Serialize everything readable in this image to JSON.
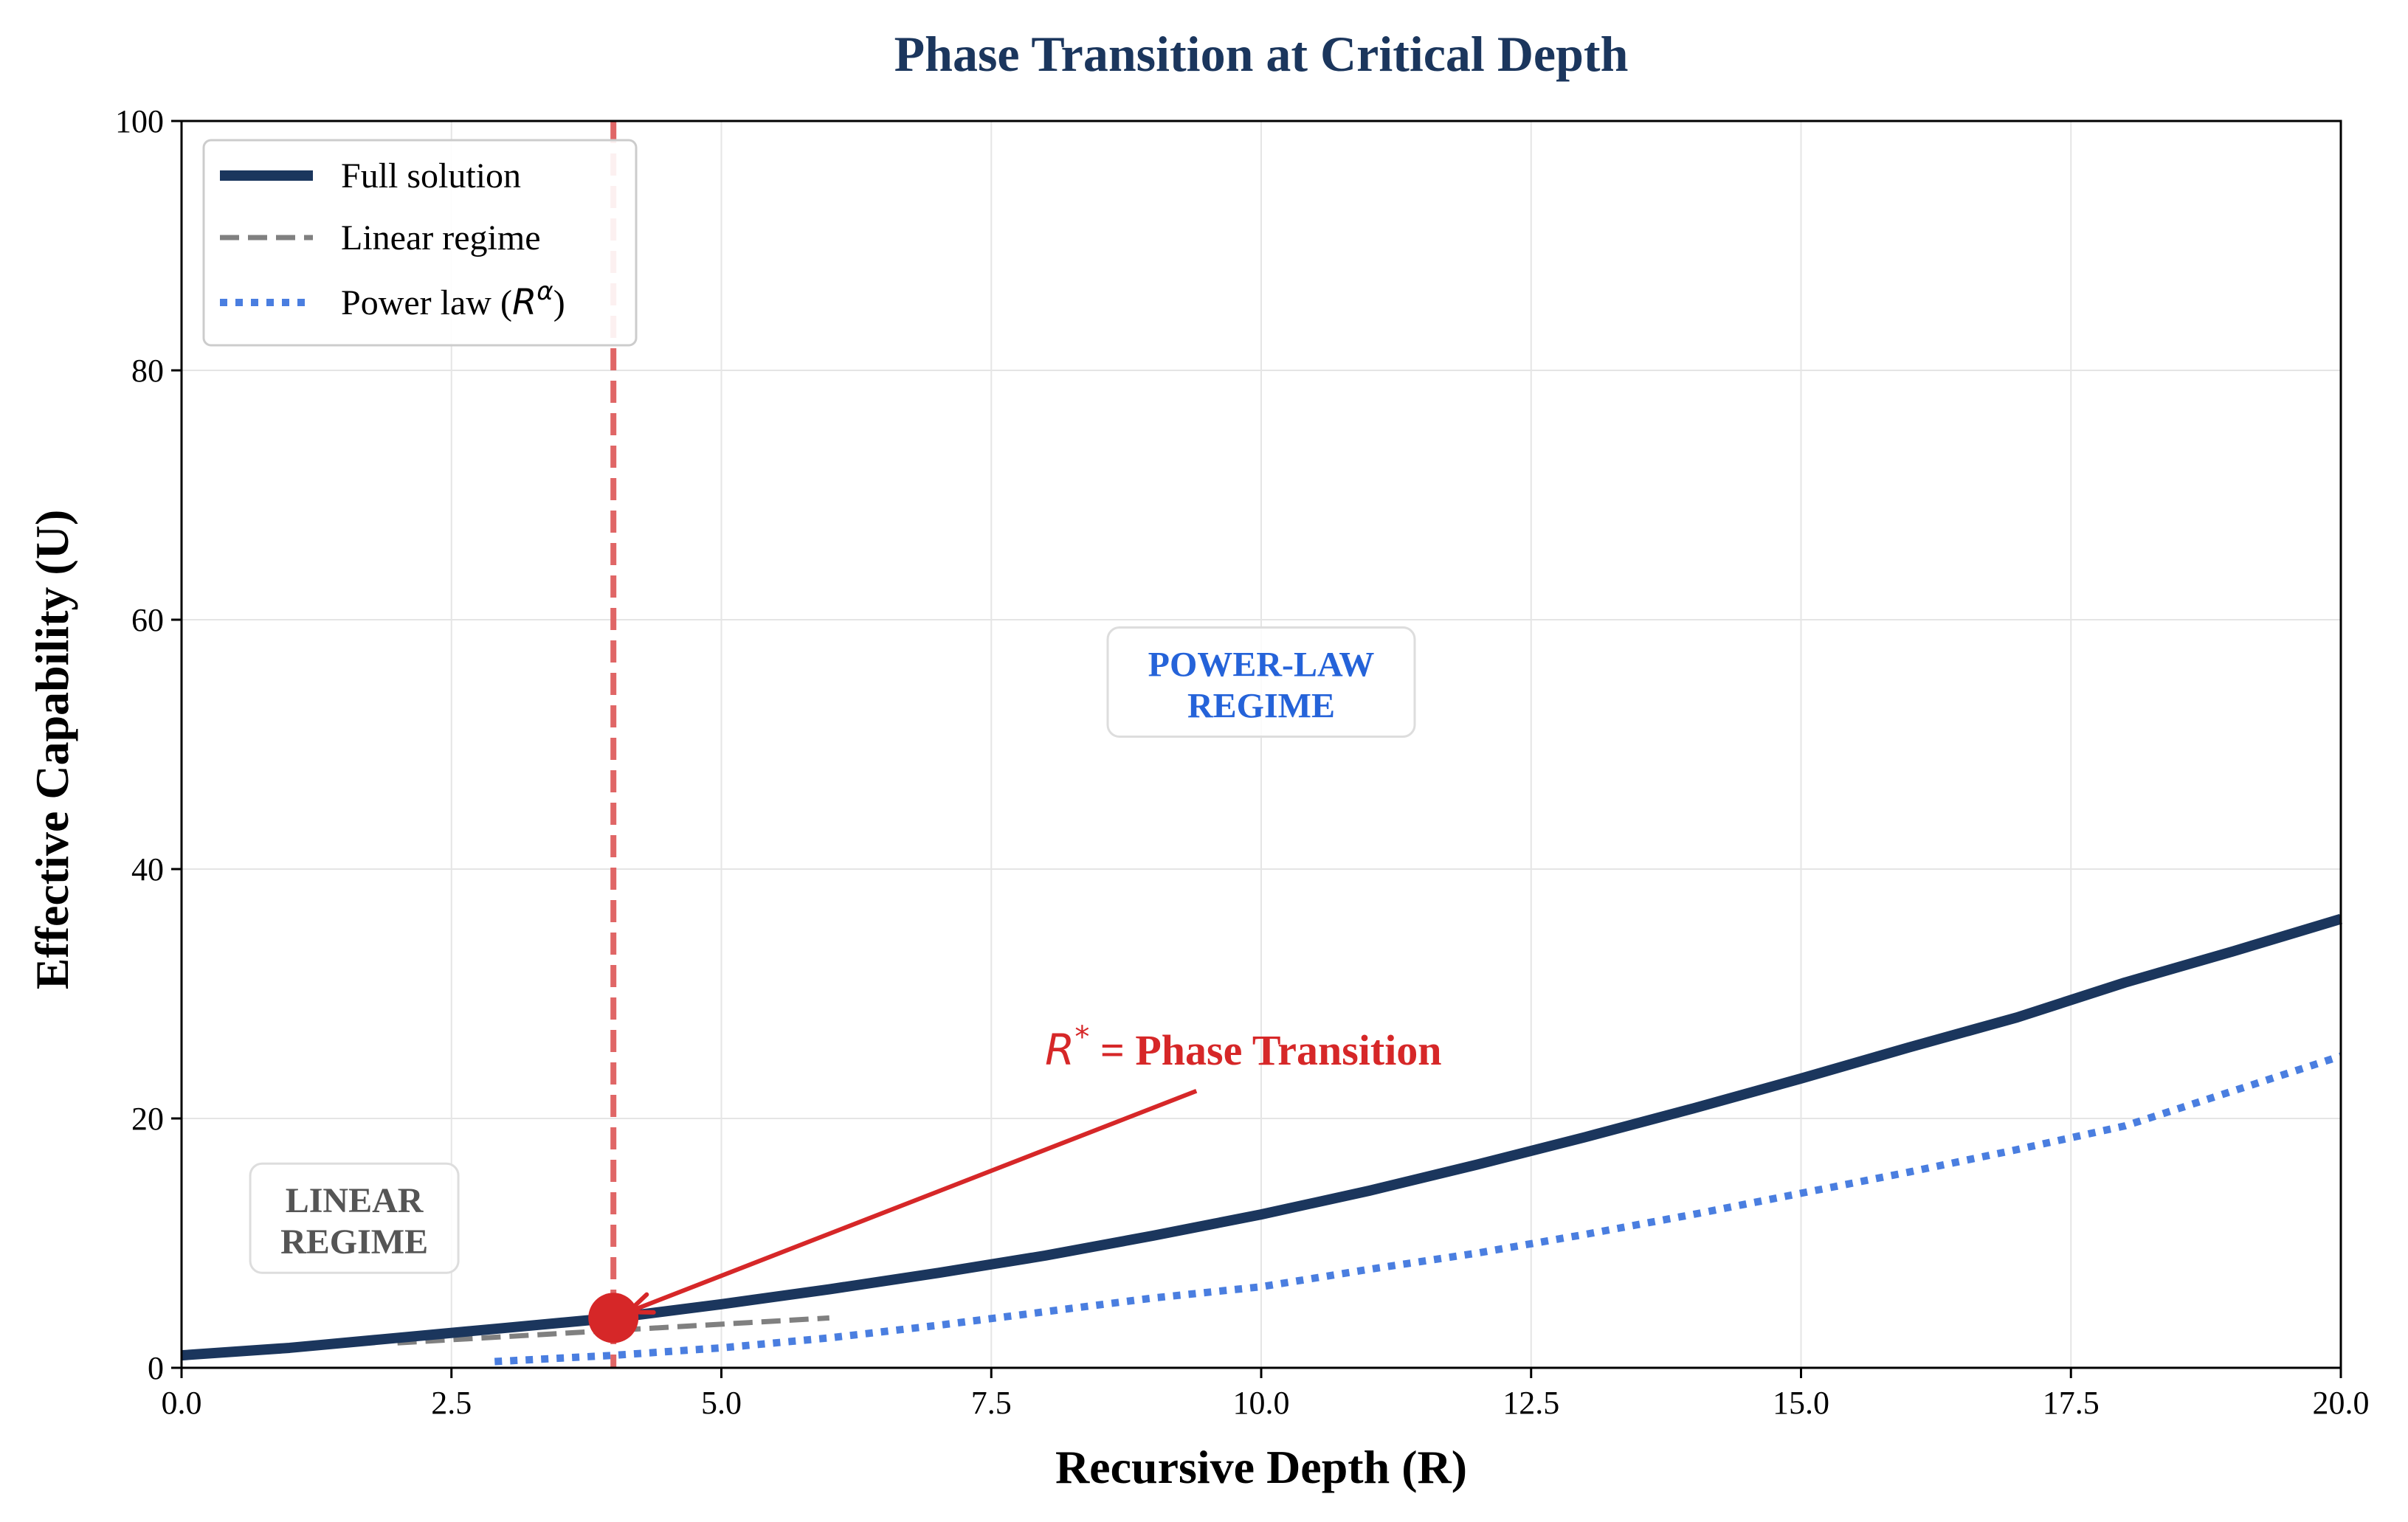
{
  "chart_data": {
    "type": "line",
    "title": "Phase Transition at Critical Depth",
    "xlabel": "Recursive Depth (R)",
    "ylabel": "Effective Capability (U)",
    "xlim": [
      0,
      20
    ],
    "ylim": [
      0,
      100
    ],
    "x_ticks": [
      "0.0",
      "2.5",
      "5.0",
      "7.5",
      "10.0",
      "12.5",
      "15.0",
      "17.5",
      "20.0"
    ],
    "y_ticks": [
      "0",
      "20",
      "40",
      "60",
      "80",
      "100"
    ],
    "x_tick_values": [
      0,
      2.5,
      5,
      7.5,
      10,
      12.5,
      15,
      17.5,
      20
    ],
    "y_tick_values": [
      0,
      20,
      40,
      60,
      80,
      100
    ],
    "grid": true,
    "legend_position": "top-left",
    "series": [
      {
        "name": "Full solution",
        "style": "solid",
        "color": "#1b365d",
        "x": [
          0,
          1,
          2,
          3,
          4,
          5,
          6,
          7,
          8,
          9,
          10,
          11,
          12,
          13,
          14,
          15,
          16,
          17,
          18,
          19,
          20
        ],
        "y": [
          1.0,
          1.6,
          2.4,
          3.2,
          4.0,
          5.1,
          6.3,
          7.6,
          9.0,
          10.6,
          12.3,
          14.2,
          16.3,
          18.5,
          20.8,
          23.2,
          25.7,
          28.1,
          30.9,
          33.4,
          36.0
        ]
      },
      {
        "name": "Linear regime",
        "style": "dashed",
        "color": "#808080",
        "x": [
          2.0,
          6.0
        ],
        "y": [
          2.0,
          4.0
        ]
      },
      {
        "name": "Power law (R^α)",
        "legend_prefix": "Power law (",
        "legend_math": "R",
        "legend_sup": "α",
        "legend_suffix": ")",
        "style": "dotted",
        "color": "#4a7ee0",
        "x": [
          2.9,
          4,
          5,
          6,
          7,
          8,
          9,
          10,
          11,
          12,
          13,
          14,
          15,
          16,
          17,
          18,
          19,
          20
        ],
        "y": [
          0.5,
          1.0,
          1.6,
          2.4,
          3.4,
          4.5,
          5.6,
          6.5,
          7.9,
          9.2,
          10.7,
          12.3,
          14.0,
          15.7,
          17.5,
          19.4,
          22.2,
          25.0
        ]
      }
    ],
    "critical_line": {
      "x": 4,
      "color": "#e06666"
    },
    "critical_point": {
      "x": 4,
      "y": 4,
      "color": "#d62728"
    },
    "annotations": {
      "phase_transition": {
        "math": "R",
        "sup": "*",
        "text": " = Phase Transition",
        "text_x": 9.4,
        "text_y": 22.5,
        "target_x": 4,
        "target_y": 4,
        "color": "#d62728"
      },
      "power_law_regime": {
        "line1": "POWER-LAW",
        "line2": "REGIME",
        "x": 10,
        "y": 55,
        "color": "#2563d9"
      },
      "linear_regime": {
        "line1": "LINEAR",
        "line2": "REGIME",
        "x": 1.6,
        "y": 12,
        "color": "#555555"
      }
    },
    "colors": {
      "title": "#1b365d",
      "grid": "#e5e5e5",
      "axis": "#000000"
    }
  }
}
